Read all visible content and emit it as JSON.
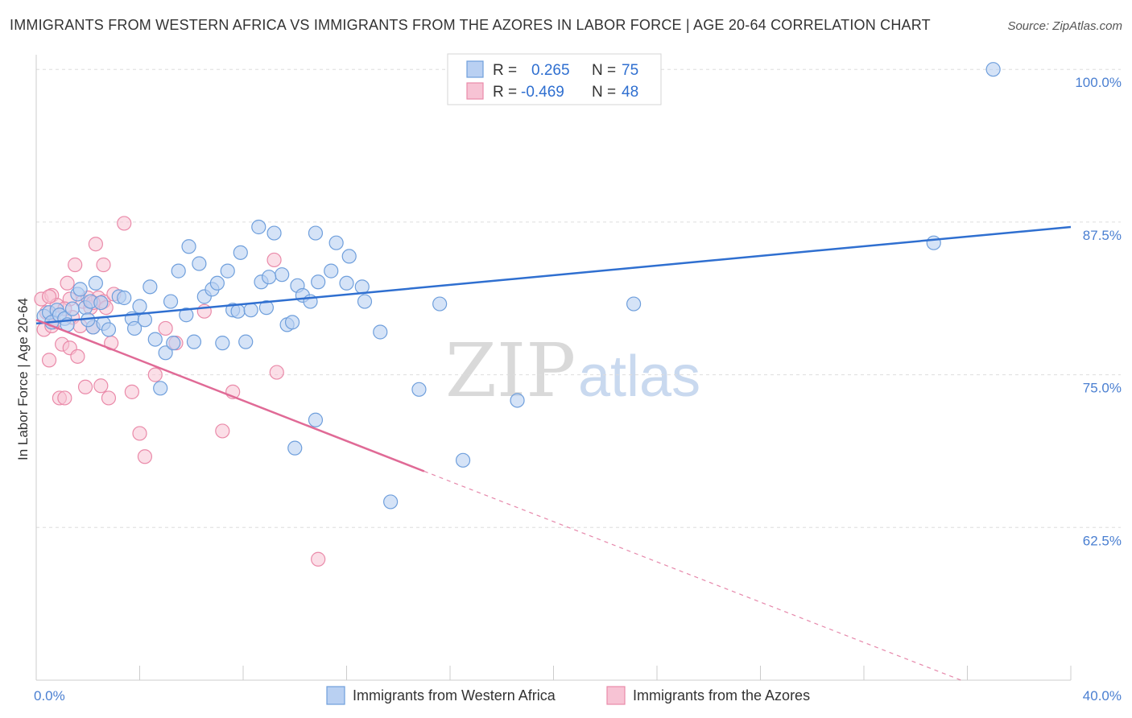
{
  "header": {
    "title": "IMMIGRANTS FROM WESTERN AFRICA VS IMMIGRANTS FROM THE AZORES IN LABOR FORCE | AGE 20-64 CORRELATION CHART",
    "source": "Source: ZipAtlas.com"
  },
  "watermark": {
    "zip": "ZIP",
    "atlas": "atlas"
  },
  "legend_box": {
    "rows": [
      {
        "r_label": "R =",
        "r_value": "0.265",
        "n_label": "N =",
        "n_value": "75"
      },
      {
        "r_label": "R =",
        "r_value": "-0.469",
        "n_label": "N =",
        "n_value": "48"
      }
    ]
  },
  "colors": {
    "series1_fill": "#b9d0f2",
    "series1_stroke": "#6f9fdc",
    "series1_line": "#2f6fd0",
    "series2_fill": "#f7c3d4",
    "series2_stroke": "#ea8aa9",
    "series2_line": "#e06a96",
    "grid": "#dddddd",
    "axis_label": "#4a7fd1"
  },
  "chart_data": {
    "type": "scatter",
    "title": "IMMIGRANTS FROM WESTERN AFRICA VS IMMIGRANTS FROM THE AZORES IN LABOR FORCE | AGE 20-64 CORRELATION CHART",
    "xlabel": "",
    "ylabel": "In Labor Force | Age 20-64",
    "xlim": [
      0,
      40
    ],
    "ylim": [
      50,
      101.2
    ],
    "x_tick_labels": [
      "0.0%",
      "40.0%"
    ],
    "y_ticks": [
      62.5,
      75.0,
      87.5,
      100.0
    ],
    "y_tick_labels": [
      "62.5%",
      "75.0%",
      "87.5%",
      "100.0%"
    ],
    "grid": true,
    "legend_position": "top-center",
    "series": [
      {
        "name": "Immigrants from Western Africa",
        "R": 0.265,
        "N": 75,
        "trend": {
          "x": [
            0.0,
            40.0
          ],
          "y": [
            79.2,
            87.1
          ]
        },
        "points": [
          [
            0.3,
            79.8
          ],
          [
            0.5,
            80.1
          ],
          [
            0.6,
            79.3
          ],
          [
            0.8,
            80.3
          ],
          [
            0.9,
            79.9
          ],
          [
            1.1,
            79.6
          ],
          [
            1.2,
            79.1
          ],
          [
            1.4,
            80.4
          ],
          [
            1.6,
            81.6
          ],
          [
            1.7,
            82.0
          ],
          [
            1.9,
            80.5
          ],
          [
            2.1,
            81.0
          ],
          [
            2.2,
            78.9
          ],
          [
            2.3,
            82.5
          ],
          [
            2.5,
            80.9
          ],
          [
            2.6,
            79.2
          ],
          [
            2.8,
            78.7
          ],
          [
            3.2,
            81.4
          ],
          [
            3.4,
            81.3
          ],
          [
            3.7,
            79.6
          ],
          [
            3.8,
            78.8
          ],
          [
            4.0,
            80.6
          ],
          [
            4.2,
            79.5
          ],
          [
            4.4,
            82.2
          ],
          [
            4.6,
            77.9
          ],
          [
            4.8,
            73.9
          ],
          [
            5.0,
            76.8
          ],
          [
            5.2,
            81.0
          ],
          [
            5.3,
            77.6
          ],
          [
            5.5,
            83.5
          ],
          [
            5.8,
            79.9
          ],
          [
            5.9,
            85.5
          ],
          [
            6.1,
            77.7
          ],
          [
            6.3,
            84.1
          ],
          [
            6.5,
            81.4
          ],
          [
            6.8,
            82.0
          ],
          [
            7.0,
            82.5
          ],
          [
            7.2,
            77.6
          ],
          [
            7.4,
            83.5
          ],
          [
            7.6,
            80.3
          ],
          [
            7.8,
            80.2
          ],
          [
            7.9,
            85.0
          ],
          [
            8.1,
            77.7
          ],
          [
            8.3,
            80.3
          ],
          [
            8.6,
            87.1
          ],
          [
            8.7,
            82.6
          ],
          [
            8.9,
            80.5
          ],
          [
            9.2,
            86.6
          ],
          [
            9.5,
            83.2
          ],
          [
            9.7,
            79.1
          ],
          [
            9.9,
            79.3
          ],
          [
            10.1,
            82.3
          ],
          [
            10.3,
            81.5
          ],
          [
            10.6,
            81.0
          ],
          [
            10.0,
            69.0
          ],
          [
            10.8,
            71.3
          ],
          [
            10.8,
            86.6
          ],
          [
            10.9,
            82.6
          ],
          [
            11.4,
            83.5
          ],
          [
            11.6,
            85.8
          ],
          [
            12.0,
            82.5
          ],
          [
            12.1,
            84.7
          ],
          [
            12.7,
            81.0
          ],
          [
            12.6,
            82.2
          ],
          [
            13.3,
            78.5
          ],
          [
            14.8,
            73.8
          ],
          [
            15.6,
            80.8
          ],
          [
            16.5,
            68.0
          ],
          [
            18.6,
            72.9
          ],
          [
            23.1,
            80.8
          ],
          [
            34.7,
            85.8
          ],
          [
            37.0,
            100.0
          ],
          [
            13.7,
            64.6
          ],
          [
            2.0,
            79.5
          ],
          [
            9.0,
            83.0
          ]
        ]
      },
      {
        "name": "Immigrants from the Azores",
        "R": -0.469,
        "N": 48,
        "trend": {
          "x": [
            0.0,
            15.0
          ],
          "y": [
            79.5,
            67.1
          ]
        },
        "trend_dashed": {
          "x": [
            15.0,
            40.0
          ],
          "y": [
            67.1,
            46.5
          ]
        },
        "points": [
          [
            0.2,
            81.2
          ],
          [
            0.3,
            78.7
          ],
          [
            0.4,
            80.1
          ],
          [
            0.5,
            76.2
          ],
          [
            0.6,
            81.5
          ],
          [
            0.7,
            79.3
          ],
          [
            0.8,
            80.7
          ],
          [
            0.9,
            73.1
          ],
          [
            1.0,
            77.5
          ],
          [
            1.1,
            73.1
          ],
          [
            1.2,
            82.5
          ],
          [
            1.3,
            77.2
          ],
          [
            1.4,
            79.7
          ],
          [
            1.5,
            84.0
          ],
          [
            1.6,
            76.5
          ],
          [
            1.7,
            79.0
          ],
          [
            1.8,
            81.0
          ],
          [
            2.0,
            81.3
          ],
          [
            2.1,
            80.5
          ],
          [
            2.2,
            78.9
          ],
          [
            2.3,
            85.7
          ],
          [
            2.4,
            81.3
          ],
          [
            2.5,
            74.1
          ],
          [
            2.6,
            81.0
          ],
          [
            2.7,
            80.5
          ],
          [
            2.8,
            73.1
          ],
          [
            2.9,
            77.6
          ],
          [
            3.0,
            81.6
          ],
          [
            2.6,
            84.0
          ],
          [
            3.4,
            87.4
          ],
          [
            3.7,
            73.6
          ],
          [
            4.0,
            70.2
          ],
          [
            4.2,
            68.3
          ],
          [
            4.6,
            75.0
          ],
          [
            5.0,
            78.8
          ],
          [
            5.4,
            77.6
          ],
          [
            6.5,
            80.2
          ],
          [
            7.2,
            70.4
          ],
          [
            7.6,
            73.6
          ],
          [
            9.2,
            84.4
          ],
          [
            9.3,
            75.2
          ],
          [
            10.9,
            59.9
          ],
          [
            0.6,
            79.0
          ],
          [
            1.9,
            74.0
          ],
          [
            0.5,
            81.4
          ],
          [
            1.3,
            81.2
          ],
          [
            2.2,
            80.9
          ],
          [
            1.1,
            80.4
          ]
        ]
      }
    ]
  }
}
